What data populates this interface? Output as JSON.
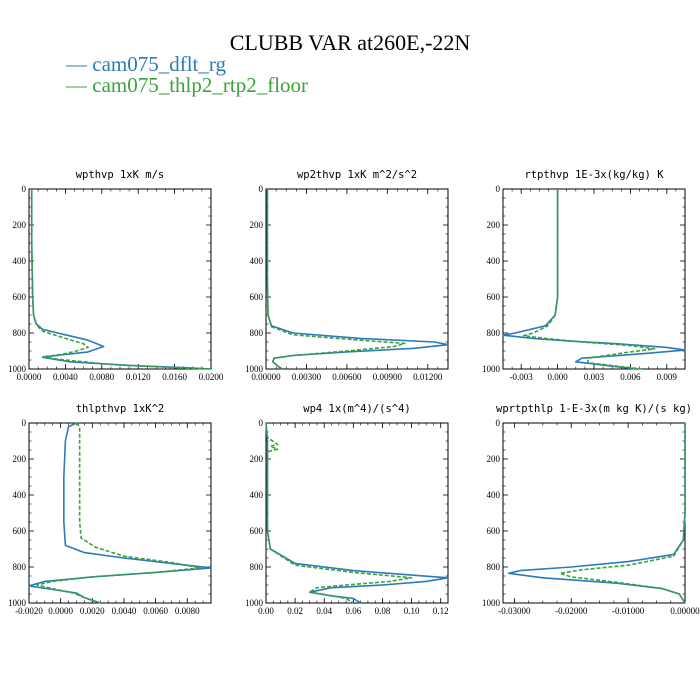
{
  "title": "CLUBB VAR at260E,-22N",
  "legend": [
    {
      "dash": "—",
      "name": "cam075_dflt_rg",
      "color": "#2b7bb9"
    },
    {
      "dash": "—",
      "name": "cam075_thlp2_rtp2_floor",
      "color": "#3aa33a"
    }
  ],
  "chart_data": [
    {
      "type": "line",
      "title": "wpthvp  1xK m/s",
      "xlim": [
        0,
        0.02
      ],
      "ylim": [
        0,
        1000
      ],
      "x_ticks": [
        "0.0000",
        "0.0040",
        "0.0080",
        "0.0120",
        "0.0160",
        "0.0200"
      ],
      "x_tick_values": [
        0,
        0.004,
        0.008,
        0.012,
        0.016,
        0.02
      ],
      "y_ticks": [
        "0",
        "200",
        "400",
        "600",
        "800",
        "1000"
      ],
      "y_tick_values": [
        0,
        200,
        400,
        600,
        800,
        1000
      ],
      "series": [
        {
          "color": "#2b7bb9",
          "dashed": false,
          "points": [
            [
              0.0003,
              0
            ],
            [
              0.0003,
              300
            ],
            [
              0.0004,
              600
            ],
            [
              0.0005,
              700
            ],
            [
              0.0008,
              750
            ],
            [
              0.0015,
              780
            ],
            [
              0.004,
              810
            ],
            [
              0.0065,
              840
            ],
            [
              0.0082,
              875
            ],
            [
              0.0065,
              905
            ],
            [
              0.003,
              925
            ],
            [
              0.0015,
              935
            ],
            [
              0.0045,
              960
            ],
            [
              0.011,
              980
            ],
            [
              0.0175,
              993
            ],
            [
              0.02,
              1000
            ]
          ]
        },
        {
          "color": "#3aa33a",
          "dashed": true,
          "points": [
            [
              0.0003,
              0
            ],
            [
              0.0003,
              300
            ],
            [
              0.0004,
              600
            ],
            [
              0.0005,
              700
            ],
            [
              0.0008,
              755
            ],
            [
              0.0015,
              790
            ],
            [
              0.004,
              830
            ],
            [
              0.006,
              860
            ],
            [
              0.0065,
              880
            ],
            [
              0.0052,
              900
            ],
            [
              0.0035,
              920
            ],
            [
              0.0015,
              932
            ],
            [
              0.003,
              945
            ],
            [
              0.009,
              975
            ],
            [
              0.017,
              995
            ],
            [
              0.02,
              1000
            ]
          ]
        }
      ]
    },
    {
      "type": "line",
      "title": "wp2thvp  1xK m^2/s^2",
      "xlim": [
        0,
        0.0135
      ],
      "ylim": [
        0,
        1000
      ],
      "x_ticks": [
        "0.00000",
        "0.00300",
        "0.00600",
        "0.00900",
        "0.01200"
      ],
      "x_tick_values": [
        0,
        0.003,
        0.006,
        0.009,
        0.012
      ],
      "y_ticks": [
        "0",
        "200",
        "400",
        "600",
        "800",
        "1000"
      ],
      "y_tick_values": [
        0,
        200,
        400,
        600,
        800,
        1000
      ],
      "series": [
        {
          "color": "#2b7bb9",
          "dashed": false,
          "points": [
            [
              0.0001,
              0
            ],
            [
              0.0001,
              500
            ],
            [
              0.00015,
              700
            ],
            [
              0.0004,
              760
            ],
            [
              0.002,
              800
            ],
            [
              0.007,
              830
            ],
            [
              0.0125,
              850
            ],
            [
              0.0135,
              865
            ],
            [
              0.011,
              885
            ],
            [
              0.006,
              905
            ],
            [
              0.002,
              925
            ],
            [
              0.0006,
              940
            ],
            [
              0.0005,
              960
            ],
            [
              0.0009,
              985
            ],
            [
              0.0012,
              1000
            ]
          ]
        },
        {
          "color": "#3aa33a",
          "dashed": true,
          "points": [
            [
              0.0001,
              0
            ],
            [
              0.0001,
              500
            ],
            [
              0.00015,
              700
            ],
            [
              0.0004,
              765
            ],
            [
              0.002,
              810
            ],
            [
              0.007,
              840
            ],
            [
              0.0103,
              858
            ],
            [
              0.0095,
              875
            ],
            [
              0.006,
              900
            ],
            [
              0.002,
              925
            ],
            [
              0.0006,
              940
            ],
            [
              0.0005,
              960
            ],
            [
              0.0009,
              985
            ],
            [
              0.0012,
              1000
            ]
          ]
        }
      ]
    },
    {
      "type": "line",
      "title": "rtpthvp  1E-3x(kg/kg) K",
      "xlim": [
        -0.0045,
        0.0105
      ],
      "ylim": [
        0,
        1000
      ],
      "x_ticks": [
        "-0.003",
        "0.000",
        "0.003",
        "0.006",
        "0.009"
      ],
      "x_tick_values": [
        -0.003,
        0,
        0.003,
        0.006,
        0.009
      ],
      "y_ticks": [
        "0",
        "200",
        "400",
        "600",
        "800",
        "1000"
      ],
      "y_tick_values": [
        0,
        200,
        400,
        600,
        800,
        1000
      ],
      "series": [
        {
          "color": "#2b7bb9",
          "dashed": false,
          "points": [
            [
              0,
              0
            ],
            [
              0,
              600
            ],
            [
              -0.0002,
              700
            ],
            [
              -0.001,
              760
            ],
            [
              -0.0035,
              800
            ],
            [
              -0.0045,
              812
            ],
            [
              -0.002,
              830
            ],
            [
              0.001,
              845
            ],
            [
              0.005,
              860
            ],
            [
              0.009,
              880
            ],
            [
              0.0105,
              895
            ],
            [
              0.007,
              915
            ],
            [
              0.002,
              940
            ],
            [
              0.0015,
              960
            ],
            [
              0.004,
              980
            ],
            [
              0.0065,
              1000
            ]
          ]
        },
        {
          "color": "#3aa33a",
          "dashed": true,
          "points": [
            [
              0,
              0
            ],
            [
              0,
              600
            ],
            [
              -0.0002,
              700
            ],
            [
              -0.0008,
              760
            ],
            [
              -0.002,
              800
            ],
            [
              -0.0028,
              815
            ],
            [
              -0.001,
              830
            ],
            [
              0.002,
              850
            ],
            [
              0.006,
              870
            ],
            [
              0.008,
              888
            ],
            [
              0.006,
              905
            ],
            [
              0.0025,
              940
            ],
            [
              0.0025,
              965
            ],
            [
              0.005,
              985
            ],
            [
              0.007,
              1000
            ]
          ]
        }
      ]
    },
    {
      "type": "line",
      "title": "thlpthvp  1xK^2",
      "xlim": [
        -0.002,
        0.0095
      ],
      "ylim": [
        0,
        1000
      ],
      "x_ticks": [
        "-0.0020",
        "0.0000",
        "0.0020",
        "0.0040",
        "0.0060",
        "0.0080"
      ],
      "x_tick_values": [
        -0.002,
        0,
        0.002,
        0.004,
        0.006,
        0.008
      ],
      "y_ticks": [
        "0",
        "200",
        "400",
        "600",
        "800",
        "1000"
      ],
      "y_tick_values": [
        0,
        200,
        400,
        600,
        800,
        1000
      ],
      "series": [
        {
          "color": "#2b7bb9",
          "dashed": false,
          "points": [
            [
              0.001,
              0
            ],
            [
              0.0005,
              20
            ],
            [
              0.0003,
              100
            ],
            [
              0.0002,
              300
            ],
            [
              0.0002,
              550
            ],
            [
              0.0003,
              680
            ],
            [
              0.0015,
              720
            ],
            [
              0.004,
              750
            ],
            [
              0.007,
              780
            ],
            [
              0.0095,
              805
            ],
            [
              0.006,
              830
            ],
            [
              0.002,
              855
            ],
            [
              -0.001,
              880
            ],
            [
              -0.002,
              905
            ],
            [
              -0.0005,
              925
            ],
            [
              0.001,
              945
            ],
            [
              0.0015,
              970
            ],
            [
              0.0025,
              1000
            ]
          ]
        },
        {
          "color": "#3aa33a",
          "dashed": true,
          "points": [
            [
              0.001,
              0
            ],
            [
              0.0012,
              20
            ],
            [
              0.0012,
              100
            ],
            [
              0.0012,
              300
            ],
            [
              0.0012,
              550
            ],
            [
              0.0013,
              640
            ],
            [
              0.0022,
              690
            ],
            [
              0.004,
              740
            ],
            [
              0.007,
              775
            ],
            [
              0.0088,
              805
            ],
            [
              0.006,
              830
            ],
            [
              0.002,
              855
            ],
            [
              -0.0005,
              880
            ],
            [
              -0.0015,
              900
            ],
            [
              -0.0005,
              920
            ],
            [
              0.0008,
              945
            ],
            [
              0.0015,
              970
            ],
            [
              0.0025,
              1000
            ]
          ]
        }
      ]
    },
    {
      "type": "line",
      "title": "wp4  1x(m^4)/(s^4)",
      "xlim": [
        0,
        0.125
      ],
      "ylim": [
        0,
        1000
      ],
      "x_ticks": [
        "0.00",
        "0.02",
        "0.04",
        "0.06",
        "0.08",
        "0.10",
        "0.12"
      ],
      "x_tick_values": [
        0,
        0.02,
        0.04,
        0.06,
        0.08,
        0.1,
        0.12
      ],
      "y_ticks": [
        "0",
        "200",
        "400",
        "600",
        "800",
        "1000"
      ],
      "y_tick_values": [
        0,
        200,
        400,
        600,
        800,
        1000
      ],
      "series": [
        {
          "color": "#2b7bb9",
          "dashed": false,
          "points": [
            [
              0,
              0
            ],
            [
              0.001,
              100
            ],
            [
              0.001,
              350
            ],
            [
              0.001,
              600
            ],
            [
              0.003,
              700
            ],
            [
              0.02,
              780
            ],
            [
              0.06,
              820
            ],
            [
              0.1,
              845
            ],
            [
              0.125,
              860
            ],
            [
              0.11,
              880
            ],
            [
              0.08,
              900
            ],
            [
              0.045,
              915
            ],
            [
              0.03,
              940
            ],
            [
              0.045,
              960
            ],
            [
              0.06,
              975
            ],
            [
              0.065,
              1000
            ]
          ]
        },
        {
          "color": "#3aa33a",
          "dashed": true,
          "points": [
            [
              0,
              0
            ],
            [
              0.001,
              80
            ],
            [
              0.008,
              120
            ],
            [
              0.003,
              130
            ],
            [
              0.008,
              145
            ],
            [
              0.001,
              160
            ],
            [
              0.001,
              350
            ],
            [
              0.001,
              600
            ],
            [
              0.003,
              700
            ],
            [
              0.02,
              790
            ],
            [
              0.06,
              830
            ],
            [
              0.1,
              860
            ],
            [
              0.085,
              880
            ],
            [
              0.055,
              900
            ],
            [
              0.035,
              915
            ],
            [
              0.03,
              940
            ],
            [
              0.045,
              960
            ],
            [
              0.055,
              975
            ],
            [
              0.06,
              1000
            ]
          ]
        }
      ]
    },
    {
      "type": "line",
      "title": "wprtpthlp  1-E-3x(m kg K)/(s kg)",
      "xlim": [
        -0.032,
        0
      ],
      "ylim": [
        0,
        1000
      ],
      "x_ticks": [
        "-0.03000",
        "-0.02000",
        "-0.01000",
        "0.00000"
      ],
      "x_tick_values": [
        -0.03,
        -0.02,
        -0.01,
        0
      ],
      "y_ticks": [
        "0",
        "200",
        "400",
        "600",
        "800",
        "1000"
      ],
      "y_tick_values": [
        0,
        200,
        400,
        600,
        800,
        1000
      ],
      "series": [
        {
          "color": "#2b7bb9",
          "dashed": false,
          "points": [
            [
              0,
              0
            ],
            [
              0,
              500
            ],
            [
              -0.0003,
              650
            ],
            [
              -0.002,
              730
            ],
            [
              -0.01,
              770
            ],
            [
              -0.02,
              800
            ],
            [
              -0.029,
              820
            ],
            [
              -0.031,
              835
            ],
            [
              -0.025,
              860
            ],
            [
              -0.012,
              890
            ],
            [
              -0.004,
              920
            ],
            [
              -0.001,
              950
            ],
            [
              0,
              1000
            ]
          ]
        },
        {
          "color": "#3aa33a",
          "dashed": true,
          "points": [
            [
              0,
              0
            ],
            [
              0,
              500
            ],
            [
              -0.0003,
              650
            ],
            [
              -0.002,
              740
            ],
            [
              -0.01,
              790
            ],
            [
              -0.018,
              815
            ],
            [
              -0.022,
              835
            ],
            [
              -0.02,
              855
            ],
            [
              -0.012,
              885
            ],
            [
              -0.004,
              920
            ],
            [
              -0.001,
              950
            ],
            [
              0,
              1000
            ]
          ]
        }
      ]
    }
  ]
}
